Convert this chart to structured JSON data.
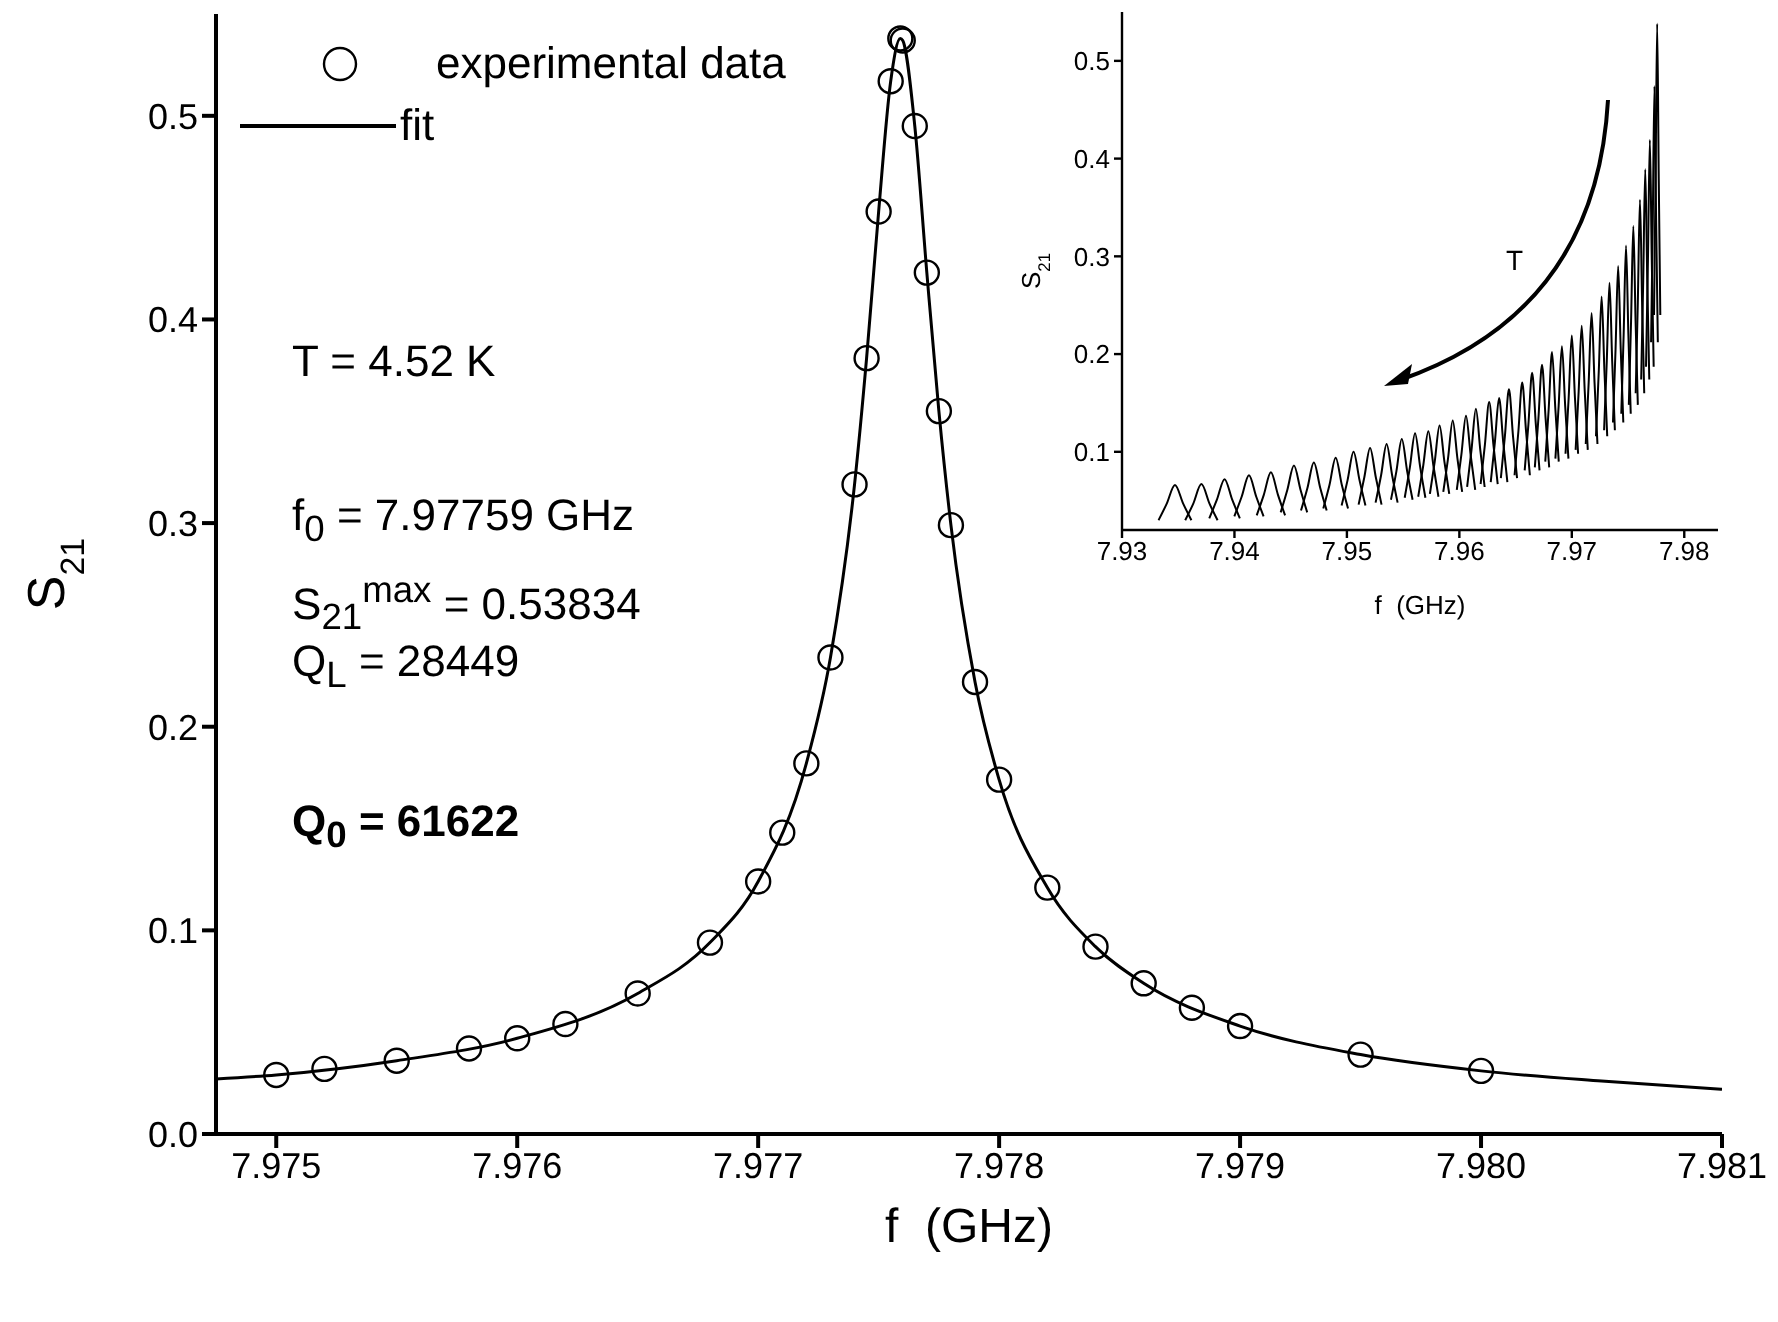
{
  "chart_data": [
    {
      "type": "scatter",
      "xlabel": "f  (GHz)",
      "ylabel": "S$_{21}$",
      "xlim": [
        7.97475,
        7.981
      ],
      "ylim": [
        0,
        0.55
      ],
      "xticks": [
        7.975,
        7.976,
        7.977,
        7.978,
        7.979,
        {
          "value": 7.98,
          "label": "7.980"
        },
        7.981
      ],
      "yticks": [
        {
          "value": 0,
          "label": "0.0"
        },
        0.1,
        0.2,
        0.3,
        0.4,
        0.5
      ],
      "legend": "top left",
      "annotations": [
        "T = 4.52 K",
        "f$_{0}$ = 7.97759 GHz",
        "S$_{21}$$^{max}$ = 0.53834",
        "Q$_{L}$ = 28449",
        "Q$_{0}$ = 61622"
      ],
      "series": [
        {
          "name": "experimental data",
          "marker": "circle",
          "color": "#000000",
          "x": [
            7.975,
            7.9752,
            7.9755,
            7.9758,
            7.976,
            7.9762,
            7.9765,
            7.9768,
            7.977,
            7.9771,
            7.9772,
            7.9773,
            7.9774,
            7.97745,
            7.9775,
            7.97755,
            7.97759,
            7.9776,
            7.97765,
            7.9777,
            7.97775,
            7.9778,
            7.9779,
            7.978,
            7.9782,
            7.9784,
            7.9786,
            7.9788,
            7.979,
            7.9795,
            7.98
          ],
          "values": [
            0.029,
            0.032,
            0.036,
            0.042,
            0.047,
            0.054,
            0.069,
            0.094,
            0.124,
            0.148,
            0.182,
            0.234,
            0.319,
            0.381,
            0.453,
            0.517,
            0.538,
            0.537,
            0.495,
            0.423,
            0.355,
            0.299,
            0.222,
            0.174,
            0.121,
            0.092,
            0.074,
            0.062,
            0.053,
            0.039,
            0.031
          ]
        },
        {
          "name": "fit",
          "type": "line",
          "marker": "none",
          "color": "#000000",
          "x": [
            7.97475,
            7.975,
            7.9755,
            7.976,
            7.9765,
            7.9768,
            7.977,
            7.9772,
            7.9773,
            7.9774,
            7.97745,
            7.9775,
            7.97755,
            7.97759,
            7.9776,
            7.97765,
            7.9777,
            7.97775,
            7.9778,
            7.9779,
            7.978,
            7.9782,
            7.9784,
            7.9786,
            7.979,
            7.9795,
            7.98,
            7.9805,
            7.981
          ],
          "values": [
            0.027,
            0.029,
            0.036,
            0.047,
            0.069,
            0.094,
            0.124,
            0.182,
            0.234,
            0.319,
            0.381,
            0.453,
            0.517,
            0.538,
            0.537,
            0.495,
            0.423,
            0.355,
            0.299,
            0.222,
            0.174,
            0.121,
            0.092,
            0.074,
            0.053,
            0.039,
            0.031,
            0.026,
            0.022
          ]
        }
      ]
    },
    {
      "type": "line",
      "xlabel": "f  (GHz)",
      "ylabel": "S$_{21}$",
      "xlim": [
        7.93,
        7.983
      ],
      "ylim": [
        0.02,
        0.55
      ],
      "xticks": [
        7.93,
        7.94,
        7.95,
        7.96,
        7.97,
        7.98
      ],
      "yticks": [
        0.1,
        0.2,
        0.3,
        0.4,
        0.5
      ],
      "annotations": [
        "T"
      ],
      "series": [
        {
          "color": "#000000",
          "x": [
            7.93325,
            7.93398,
            7.93471,
            7.93544,
            7.93617
          ],
          "values": [
            0.03,
            0.047,
            0.066,
            0.047,
            0.03
          ]
        },
        {
          "color": "#000000",
          "x": [
            7.93562,
            7.93634,
            7.93706,
            7.93778,
            7.9385
          ],
          "values": [
            0.03,
            0.047,
            0.067,
            0.047,
            0.03
          ]
        },
        {
          "color": "#000000",
          "x": [
            7.93776,
            7.93844,
            7.93912,
            7.9398,
            7.94048
          ],
          "values": [
            0.032,
            0.051,
            0.072,
            0.051,
            0.032
          ]
        },
        {
          "color": "#000000",
          "x": [
            7.93999,
            7.94064,
            7.94129,
            7.94194,
            7.94259
          ],
          "values": [
            0.034,
            0.054,
            0.076,
            0.054,
            0.034
          ]
        },
        {
          "color": "#000000",
          "x": [
            7.94198,
            7.94261,
            7.94324,
            7.94387,
            7.9445
          ],
          "values": [
            0.035,
            0.056,
            0.079,
            0.056,
            0.035
          ]
        },
        {
          "color": "#000000",
          "x": [
            7.94411,
            7.9447,
            7.94529,
            7.94588,
            7.94647
          ],
          "values": [
            0.038,
            0.061,
            0.086,
            0.061,
            0.038
          ]
        },
        {
          "color": "#000000",
          "x": [
            7.94592,
            7.94649,
            7.94706,
            7.94763,
            7.9482
          ],
          "values": [
            0.04,
            0.063,
            0.089,
            0.063,
            0.04
          ]
        },
        {
          "color": "#000000",
          "x": [
            7.9479,
            7.94845,
            7.949,
            7.94955,
            7.9501
          ],
          "values": [
            0.042,
            0.066,
            0.094,
            0.066,
            0.042
          ]
        },
        {
          "color": "#000000",
          "x": [
            7.94953,
            7.95006,
            7.95059,
            7.95112,
            7.95165
          ],
          "values": [
            0.045,
            0.071,
            0.1,
            0.071,
            0.045
          ]
        },
        {
          "color": "#000000",
          "x": [
            7.95104,
            7.95155,
            7.95206,
            7.95257,
            7.95308
          ],
          "values": [
            0.046,
            0.074,
            0.104,
            0.074,
            0.046
          ]
        },
        {
          "color": "#000000",
          "x": [
            7.95255,
            7.95304,
            7.95353,
            7.95402,
            7.95451
          ],
          "values": [
            0.048,
            0.076,
            0.108,
            0.076,
            0.048
          ]
        },
        {
          "color": "#000000",
          "x": [
            7.95392,
            7.9544,
            7.95488,
            7.95536,
            7.95584
          ],
          "values": [
            0.051,
            0.08,
            0.113,
            0.08,
            0.051
          ]
        },
        {
          "color": "#000000",
          "x": [
            7.95514,
            7.9556,
            7.95606,
            7.95652,
            7.95698
          ],
          "values": [
            0.053,
            0.084,
            0.119,
            0.084,
            0.053
          ]
        },
        {
          "color": "#000000",
          "x": [
            7.95634,
            7.95679,
            7.95724,
            7.95769,
            7.95814
          ],
          "values": [
            0.054,
            0.086,
            0.121,
            0.086,
            0.054
          ]
        },
        {
          "color": "#000000",
          "x": [
            7.95738,
            7.95781,
            7.95824,
            7.95867,
            7.9591
          ],
          "values": [
            0.057,
            0.09,
            0.127,
            0.09,
            0.057
          ]
        },
        {
          "color": "#000000",
          "x": [
            7.95857,
            7.95899,
            7.95941,
            7.95983,
            7.96025
          ],
          "values": [
            0.059,
            0.093,
            0.132,
            0.093,
            0.059
          ]
        },
        {
          "color": "#000000",
          "x": [
            7.95977,
            7.96018,
            7.96059,
            7.961,
            7.96141
          ],
          "values": [
            0.061,
            0.097,
            0.137,
            0.097,
            0.061
          ]
        },
        {
          "color": "#000000",
          "x": [
            7.96069,
            7.96108,
            7.96147,
            7.96186,
            7.96225
          ],
          "values": [
            0.064,
            0.102,
            0.144,
            0.102,
            0.064
          ]
        },
        {
          "color": "#000000",
          "x": [
            7.96189,
            7.96227,
            7.96265,
            7.96303,
            7.96341
          ],
          "values": [
            0.067,
            0.107,
            0.151,
            0.107,
            0.067
          ]
        },
        {
          "color": "#000000",
          "x": [
            7.96279,
            7.96316,
            7.96353,
            7.9639,
            7.96427
          ],
          "values": [
            0.069,
            0.11,
            0.155,
            0.11,
            0.069
          ]
        },
        {
          "color": "#000000",
          "x": [
            7.96369,
            7.96405,
            7.96441,
            7.96477,
            7.96513
          ],
          "values": [
            0.073,
            0.116,
            0.164,
            0.116,
            0.073
          ]
        },
        {
          "color": "#000000",
          "x": [
            7.96491,
            7.96525,
            7.96559,
            7.96593,
            7.96627
          ],
          "values": [
            0.076,
            0.121,
            0.171,
            0.121,
            0.076
          ]
        },
        {
          "color": "#000000",
          "x": [
            7.96581,
            7.96614,
            7.96647,
            7.9668,
            7.96713
          ],
          "values": [
            0.081,
            0.128,
            0.181,
            0.128,
            0.081
          ]
        },
        {
          "color": "#000000",
          "x": [
            7.96671,
            7.96703,
            7.96735,
            7.96767,
            7.96799
          ],
          "values": [
            0.084,
            0.134,
            0.189,
            0.134,
            0.084
          ]
        },
        {
          "color": "#000000",
          "x": [
            7.96764,
            7.96794,
            7.96824,
            7.96854,
            7.96884
          ],
          "values": [
            0.09,
            0.143,
            0.202,
            0.143,
            0.09
          ]
        },
        {
          "color": "#000000",
          "x": [
            7.96854,
            7.96883,
            7.96912,
            7.96941,
            7.9697
          ],
          "values": [
            0.093,
            0.147,
            0.208,
            0.147,
            0.093
          ]
        },
        {
          "color": "#000000",
          "x": [
            7.96944,
            7.96972,
            7.97,
            7.97028,
            7.97056
          ],
          "values": [
            0.098,
            0.155,
            0.219,
            0.155,
            0.098
          ]
        },
        {
          "color": "#000000",
          "x": [
            7.97034,
            7.97061,
            7.97088,
            7.97115,
            7.97142
          ],
          "values": [
            0.102,
            0.162,
            0.229,
            0.162,
            0.102
          ]
        },
        {
          "color": "#000000",
          "x": [
            7.97124,
            7.9715,
            7.97176,
            7.97202,
            7.97228
          ],
          "values": [
            0.108,
            0.171,
            0.242,
            0.171,
            0.108
          ]
        },
        {
          "color": "#000000",
          "x": [
            7.97215,
            7.9724,
            7.97265,
            7.9729,
            7.97315
          ],
          "values": [
            0.116,
            0.183,
            0.259,
            0.183,
            0.116
          ]
        },
        {
          "color": "#000000",
          "x": [
            7.97287,
            7.97311,
            7.97335,
            7.97359,
            7.97383
          ],
          "values": [
            0.122,
            0.193,
            0.273,
            0.193,
            0.122
          ]
        },
        {
          "color": "#000000",
          "x": [
            7.97366,
            7.97389,
            7.97412,
            7.97435,
            7.97458
          ],
          "values": [
            0.13,
            0.205,
            0.29,
            0.205,
            0.13
          ]
        },
        {
          "color": "#000000",
          "x": [
            7.9744,
            7.97461,
            7.97482,
            7.97503,
            7.97524
          ],
          "values": [
            0.139,
            0.22,
            0.311,
            0.22,
            0.139
          ]
        },
        {
          "color": "#000000",
          "x": [
            7.97507,
            7.97527,
            7.97547,
            7.97567,
            7.97587
          ],
          "values": [
            0.148,
            0.234,
            0.331,
            0.234,
            0.148
          ]
        },
        {
          "color": "#000000",
          "x": [
            7.97568,
            7.97587,
            7.97606,
            7.97625,
            7.97644
          ],
          "values": [
            0.16,
            0.253,
            0.358,
            0.253,
            0.16
          ]
        },
        {
          "color": "#000000",
          "x": [
            7.97617,
            7.97635,
            7.97653,
            7.97671,
            7.97689
          ],
          "values": [
            0.174,
            0.275,
            0.389,
            0.275,
            0.174
          ]
        },
        {
          "color": "#000000",
          "x": [
            7.9766,
            7.97677,
            7.97694,
            7.97711,
            7.97728
          ],
          "values": [
            0.187,
            0.296,
            0.419,
            0.296,
            0.187
          ]
        },
        {
          "color": "#000000",
          "x": [
            7.97705,
            7.9772,
            7.97735,
            7.9775,
            7.97765
          ],
          "values": [
            0.212,
            0.335,
            0.474,
            0.335,
            0.212
          ]
        },
        {
          "color": "#000000",
          "x": [
            7.97731,
            7.97745,
            7.97759,
            7.97773,
            7.97787
          ],
          "values": [
            0.24,
            0.38,
            0.538,
            0.38,
            0.24
          ]
        }
      ]
    }
  ]
}
